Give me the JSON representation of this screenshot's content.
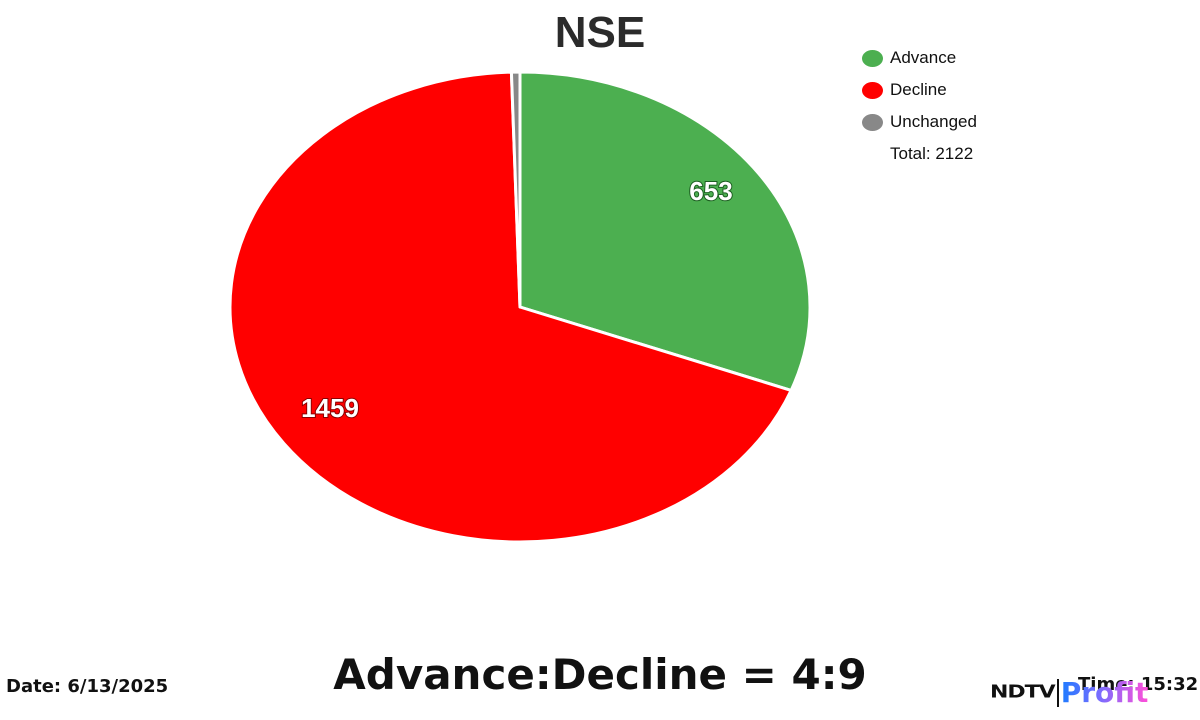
{
  "title": "NSE",
  "legend": {
    "items": [
      {
        "label": "Advance",
        "color": "#4caf50"
      },
      {
        "label": "Decline",
        "color": "#ff0000"
      },
      {
        "label": "Unchanged",
        "color": "#888888"
      }
    ],
    "total_text": "Total: 2122"
  },
  "slice_labels": {
    "advance": "653",
    "decline": "1459"
  },
  "footer": {
    "date": "Date: 6/13/2025",
    "ratio": "Advance:Decline = 4:9",
    "time": "Time: 15:32",
    "logo_left": "NDTV",
    "logo_right": "Profit"
  },
  "chart_data": {
    "type": "pie",
    "title": "NSE",
    "categories": [
      "Advance",
      "Decline",
      "Unchanged"
    ],
    "values": [
      653,
      1459,
      10
    ],
    "colors": [
      "#4caf50",
      "#ff0000",
      "#888888"
    ],
    "total": 2122,
    "data_labels": [
      "653",
      "1459",
      ""
    ],
    "legend_position": "top-right",
    "annotations": [
      "Advance:Decline = 4:9",
      "Date: 6/13/2025",
      "Time: 15:32"
    ]
  }
}
